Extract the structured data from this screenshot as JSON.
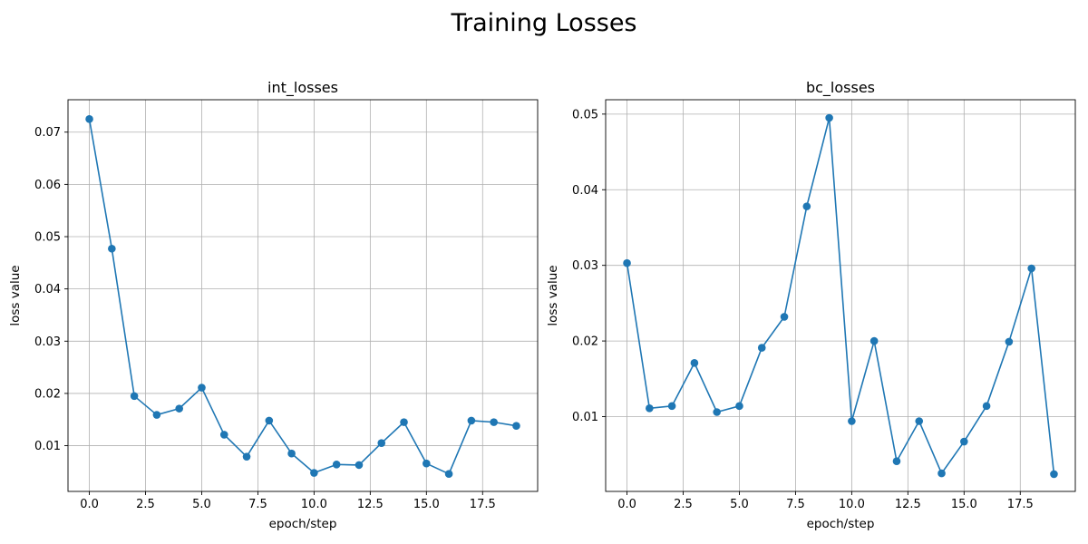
{
  "figure": {
    "title": "Training Losses"
  },
  "colors": {
    "series": "#1f77b4",
    "grid": "#b0b0b0",
    "axis": "#000000"
  },
  "chart_data": [
    {
      "type": "line",
      "marker": "circle",
      "title": "int_losses",
      "xlabel": "epoch/step",
      "ylabel": "loss value",
      "grid": true,
      "xlim": [
        -0.95,
        19.95
      ],
      "ylim": [
        0.00125,
        0.0762
      ],
      "xticks": [
        0,
        2.5,
        5,
        7.5,
        10,
        12.5,
        15,
        17.5
      ],
      "xtick_labels": [
        "0.0",
        "2.5",
        "5.0",
        "7.5",
        "10.0",
        "12.5",
        "15.0",
        "17.5"
      ],
      "yticks": [
        0.01,
        0.02,
        0.03,
        0.04,
        0.05,
        0.06,
        0.07
      ],
      "ytick_labels": [
        "0.01",
        "0.02",
        "0.03",
        "0.04",
        "0.05",
        "0.06",
        "0.07"
      ],
      "x": [
        0,
        1,
        2,
        3,
        4,
        5,
        6,
        7,
        8,
        9,
        10,
        11,
        12,
        13,
        14,
        15,
        16,
        17,
        18,
        19
      ],
      "y": [
        0.0725,
        0.0477,
        0.0195,
        0.0159,
        0.0171,
        0.0211,
        0.0121,
        0.0079,
        0.0148,
        0.0085,
        0.0048,
        0.0064,
        0.0063,
        0.0105,
        0.0145,
        0.0066,
        0.0046,
        0.0148,
        0.0145,
        0.0138
      ]
    },
    {
      "type": "line",
      "marker": "circle",
      "title": "bc_losses",
      "xlabel": "epoch/step",
      "ylabel": "loss value",
      "grid": true,
      "xlim": [
        -0.95,
        19.95
      ],
      "ylim": [
        0.00011,
        0.0519
      ],
      "xticks": [
        0,
        2.5,
        5,
        7.5,
        10,
        12.5,
        15,
        17.5
      ],
      "xtick_labels": [
        "0.0",
        "2.5",
        "5.0",
        "7.5",
        "10.0",
        "12.5",
        "15.0",
        "17.5"
      ],
      "yticks": [
        0.01,
        0.02,
        0.03,
        0.04,
        0.05
      ],
      "ytick_labels": [
        "0.01",
        "0.02",
        "0.03",
        "0.04",
        "0.05"
      ],
      "x": [
        0,
        1,
        2,
        3,
        4,
        5,
        6,
        7,
        8,
        9,
        10,
        11,
        12,
        13,
        14,
        15,
        16,
        17,
        18,
        19
      ],
      "y": [
        0.0303,
        0.0111,
        0.0114,
        0.0171,
        0.0106,
        0.0114,
        0.0191,
        0.0232,
        0.0378,
        0.0495,
        0.0094,
        0.02,
        0.0041,
        0.0094,
        0.0025,
        0.0067,
        0.0114,
        0.0199,
        0.0296,
        0.0024
      ]
    }
  ]
}
